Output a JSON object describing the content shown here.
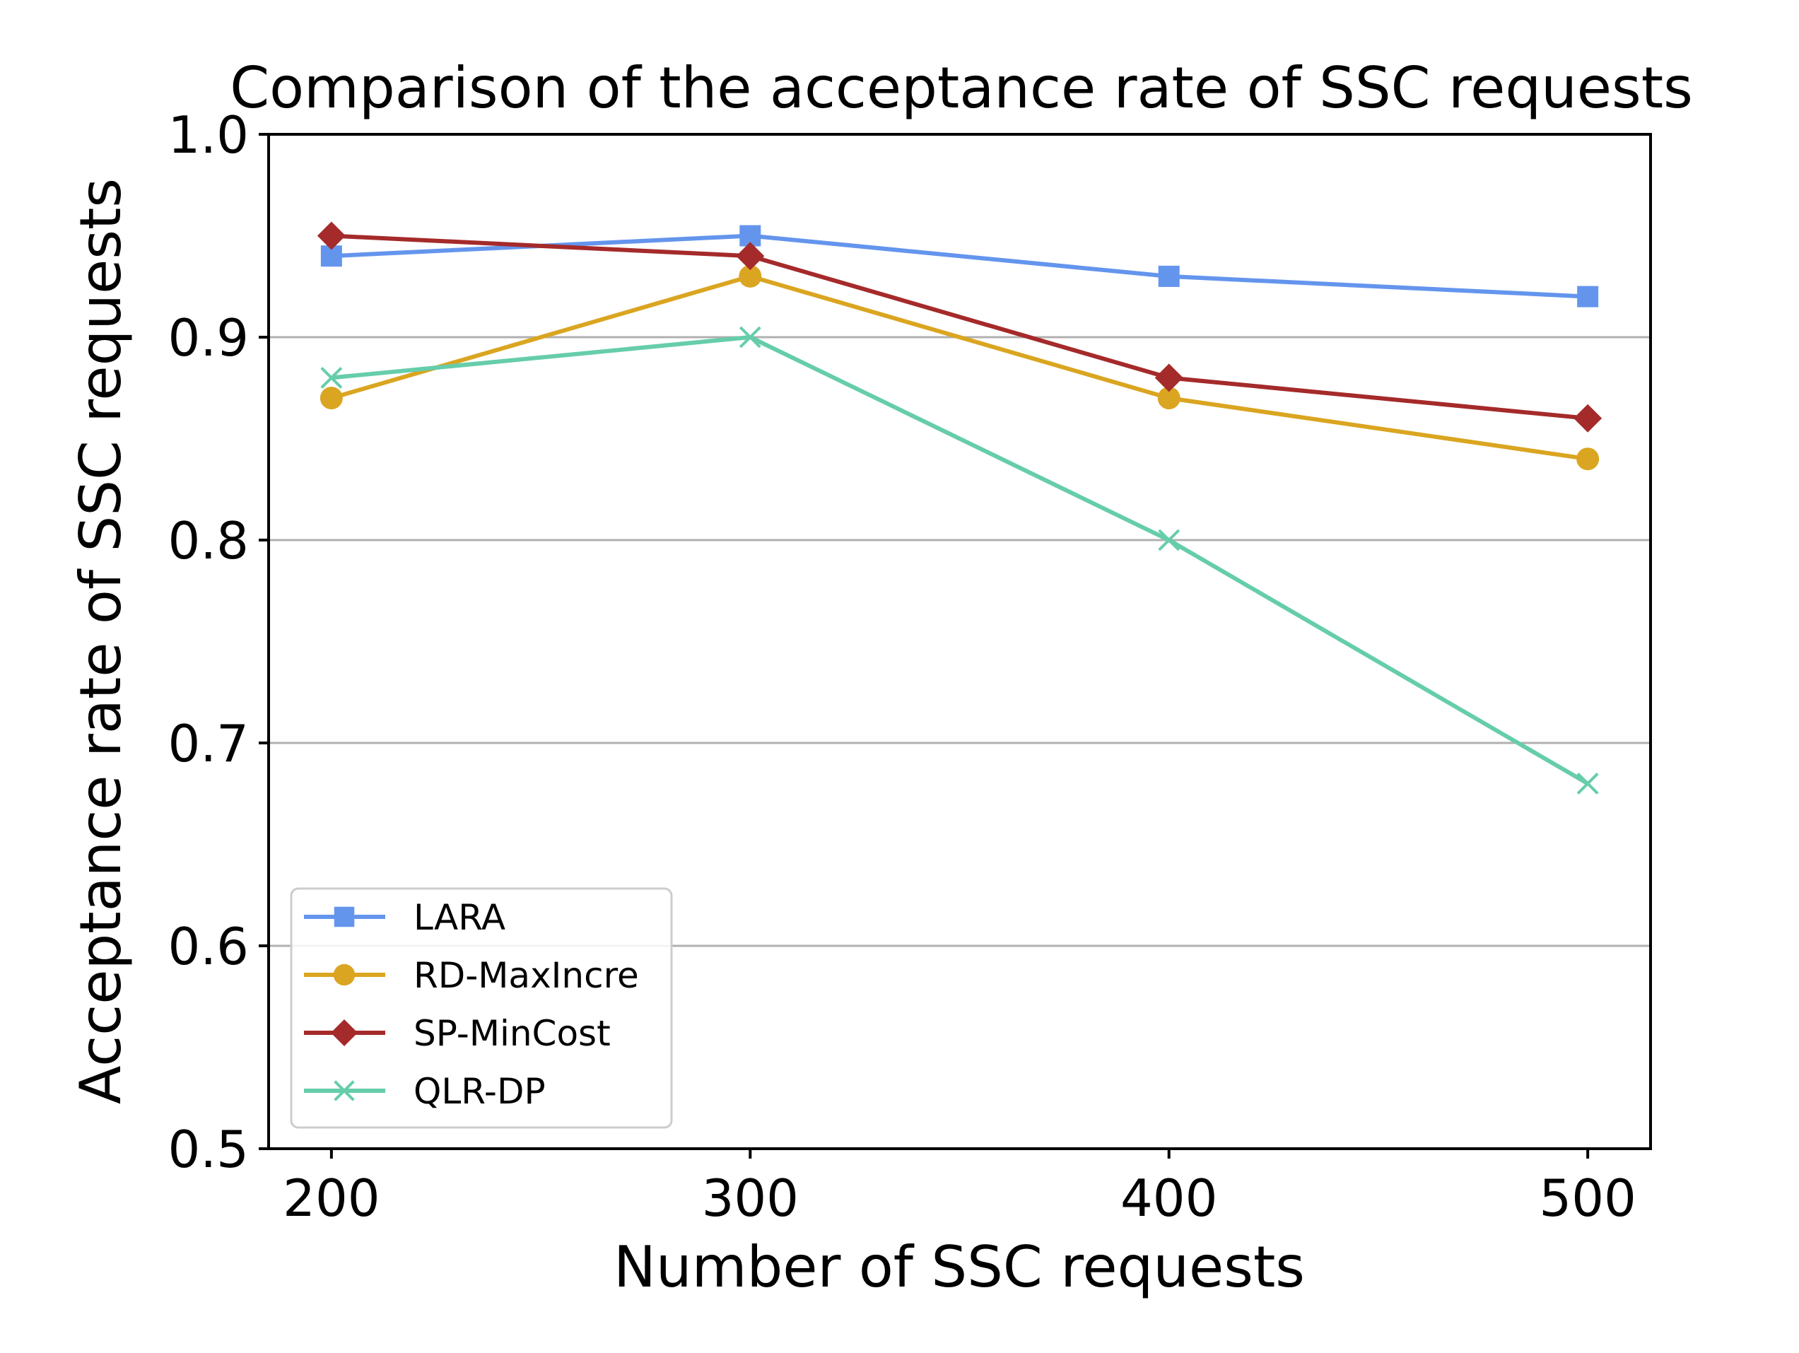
{
  "chart_data": {
    "type": "line",
    "title": "Comparison of the acceptance rate of SSC requests",
    "xlabel": "Number of SSC requests",
    "ylabel": "Acceptance rate of SSC requests",
    "x": [
      200,
      300,
      400,
      500
    ],
    "x_tick_labels": [
      "200",
      "300",
      "400",
      "500"
    ],
    "xlim": [
      185,
      515
    ],
    "ylim": [
      0.5,
      1.0
    ],
    "y_ticks": [
      0.5,
      0.6,
      0.7,
      0.8,
      0.9,
      1.0
    ],
    "y_tick_labels": [
      "0.5",
      "0.6",
      "0.7",
      "0.8",
      "0.9",
      "1.0"
    ],
    "grid": "horizontal",
    "legend_position": "lower-left",
    "series": [
      {
        "name": "LARA",
        "values": [
          0.94,
          0.95,
          0.93,
          0.92
        ],
        "color": "#6495ED",
        "marker": "square"
      },
      {
        "name": "RD-MaxIncre",
        "values": [
          0.87,
          0.93,
          0.87,
          0.84
        ],
        "color": "#DAA520",
        "marker": "circle"
      },
      {
        "name": "SP-MinCost",
        "values": [
          0.95,
          0.94,
          0.88,
          0.86
        ],
        "color": "#A52A2A",
        "marker": "diamond"
      },
      {
        "name": "QLR-DP",
        "values": [
          0.88,
          0.9,
          0.8,
          0.68
        ],
        "color": "#66CDAA",
        "marker": "x"
      }
    ]
  }
}
